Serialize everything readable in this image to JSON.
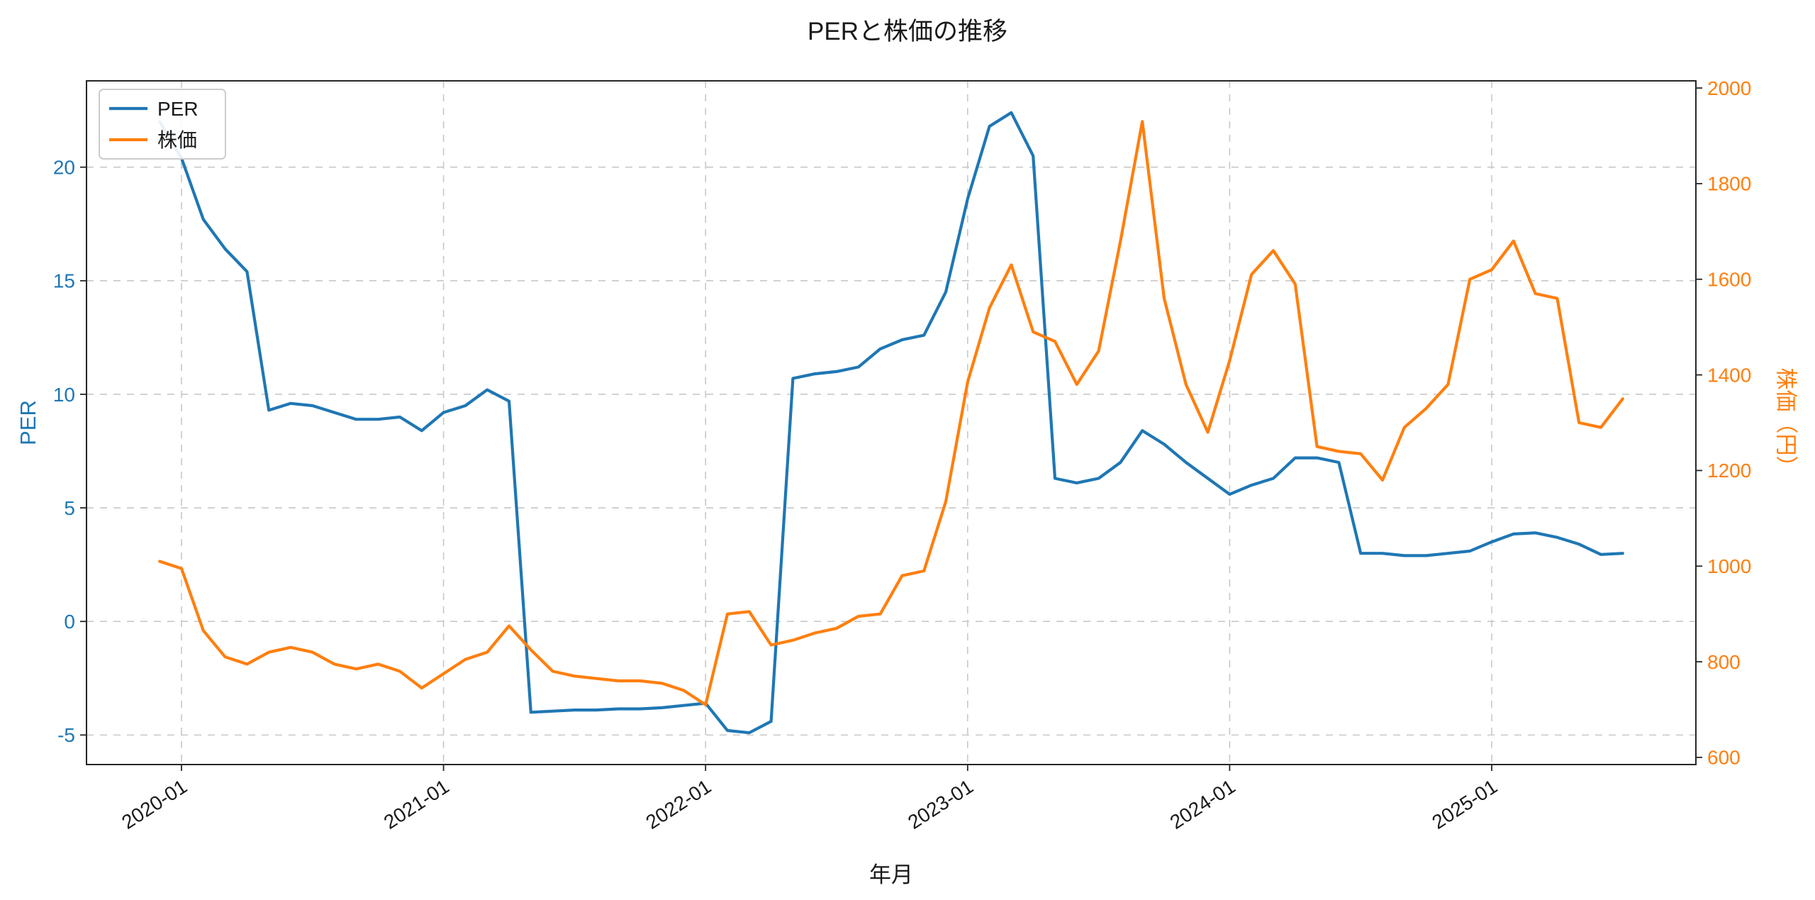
{
  "chart_data": {
    "type": "line",
    "title": "PERと株価の推移",
    "xlabel": "年月",
    "ylabel_left": "PER",
    "ylabel_right": "株価（円）",
    "grid": {
      "show": true,
      "style": "dashed",
      "color": "#c8c8c8"
    },
    "x_margin_frac": 0.05,
    "x": [
      "2019-12",
      "2020-01",
      "2020-02",
      "2020-03",
      "2020-04",
      "2020-05",
      "2020-06",
      "2020-07",
      "2020-08",
      "2020-09",
      "2020-10",
      "2020-11",
      "2020-12",
      "2021-01",
      "2021-02",
      "2021-03",
      "2021-04",
      "2021-05",
      "2021-06",
      "2021-07",
      "2021-08",
      "2021-09",
      "2021-10",
      "2021-11",
      "2021-12",
      "2022-01",
      "2022-02",
      "2022-03",
      "2022-04",
      "2022-05",
      "2022-06",
      "2022-07",
      "2022-08",
      "2022-09",
      "2022-10",
      "2022-11",
      "2022-12",
      "2023-01",
      "2023-02",
      "2023-03",
      "2023-04",
      "2023-05",
      "2023-06",
      "2023-07",
      "2023-08",
      "2023-09",
      "2023-10",
      "2023-11",
      "2023-12",
      "2024-01",
      "2024-02",
      "2024-03",
      "2024-04",
      "2024-05",
      "2024-06",
      "2024-07",
      "2024-08",
      "2024-09",
      "2024-10",
      "2024-11",
      "2024-12",
      "2025-01",
      "2025-02",
      "2025-03",
      "2025-04",
      "2025-05",
      "2025-06",
      "2025-07"
    ],
    "x_ticks": [
      "2020-01",
      "2021-01",
      "2022-01",
      "2023-01",
      "2024-01",
      "2025-01"
    ],
    "left_axis": {
      "ticks": [
        -5,
        0,
        5,
        10,
        15,
        20
      ],
      "lim": [
        -6.3,
        23.8
      ],
      "color": "#1f77b4"
    },
    "right_axis": {
      "ticks": [
        600,
        800,
        1000,
        1200,
        1400,
        1600,
        1800,
        2000
      ],
      "lim": [
        585,
        2015
      ],
      "color": "#ff7f0e"
    },
    "series": [
      {
        "name": "PER",
        "axis": "left",
        "color": "#1f77b4",
        "values": [
          22.0,
          20.4,
          17.7,
          16.4,
          15.4,
          9.3,
          9.6,
          9.5,
          9.2,
          8.9,
          8.9,
          9.0,
          8.4,
          9.2,
          9.5,
          10.2,
          9.7,
          -4.0,
          -3.95,
          -3.9,
          -3.9,
          -3.85,
          -3.85,
          -3.8,
          -3.7,
          -3.6,
          -4.8,
          -4.9,
          -4.4,
          10.7,
          10.9,
          11.0,
          11.2,
          12.0,
          12.4,
          12.6,
          14.5,
          18.6,
          21.8,
          22.4,
          20.5,
          6.3,
          6.1,
          6.3,
          7.0,
          8.4,
          7.8,
          7.0,
          6.3,
          5.6,
          6.0,
          6.3,
          7.2,
          7.2,
          7.0,
          3.0,
          3.0,
          2.9,
          2.9,
          3.0,
          3.1,
          3.5,
          3.85,
          3.9,
          3.7,
          3.4,
          2.95,
          3.0
        ]
      },
      {
        "name": "株価",
        "axis": "right",
        "color": "#ff7f0e",
        "values": [
          1010,
          995,
          865,
          810,
          795,
          820,
          830,
          820,
          795,
          785,
          795,
          780,
          745,
          775,
          805,
          820,
          875,
          825,
          780,
          770,
          765,
          760,
          760,
          755,
          740,
          710,
          900,
          905,
          835,
          845,
          860,
          870,
          895,
          900,
          980,
          990,
          1135,
          1385,
          1540,
          1630,
          1490,
          1470,
          1380,
          1450,
          1680,
          1930,
          1560,
          1380,
          1280,
          1430,
          1610,
          1660,
          1590,
          1250,
          1240,
          1235,
          1180,
          1290,
          1330,
          1380,
          1600,
          1620,
          1680,
          1570,
          1560,
          1300,
          1290,
          1350
        ]
      }
    ],
    "legend": {
      "position": "upper-left",
      "entries": [
        "PER",
        "株価"
      ]
    }
  }
}
